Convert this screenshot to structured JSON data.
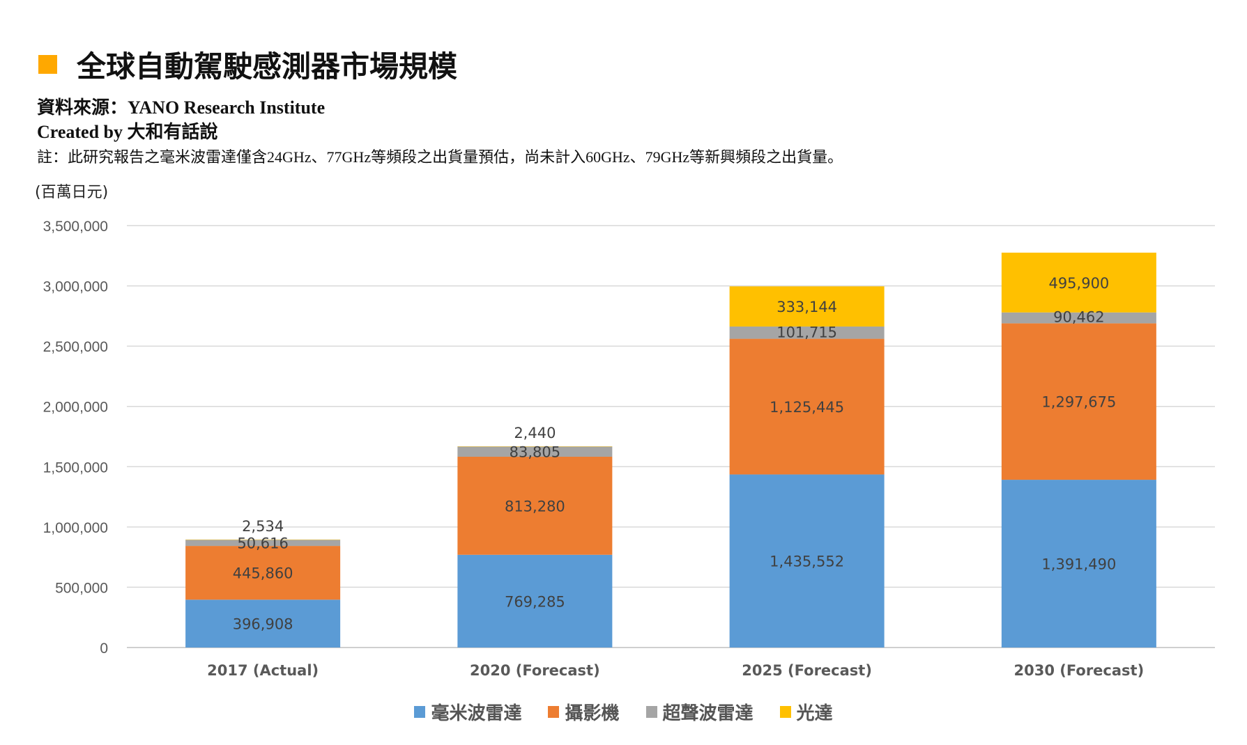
{
  "header": {
    "title": "全球自動駕駛感測器市場規模",
    "source": "資料來源：YANO Research Institute",
    "created_by": "Created by 大和有話說",
    "note": "註：此研究報告之毫米波雷達僅含24GHz、77GHz等頻段之出貨量預估，尚未計入60GHz、79GHz等新興頻段之出貨量。",
    "unit": "(百萬日元)",
    "accent": "#FFA800"
  },
  "chart_data": {
    "type": "bar",
    "stacked": true,
    "title": "全球自動駕駛感測器市場規模",
    "ylabel": "(百萬日元)",
    "xlabel": "",
    "ylim": [
      0,
      3500000
    ],
    "yticks": [
      "0",
      "500,000",
      "1,000,000",
      "1,500,000",
      "2,000,000",
      "2,500,000",
      "3,000,000",
      "3,500,000"
    ],
    "ytick_values": [
      0,
      500000,
      1000000,
      1500000,
      2000000,
      2500000,
      3000000,
      3500000
    ],
    "grid": true,
    "legend_position": "bottom",
    "categories": [
      "2017 (Actual)",
      "2020 (Forecast)",
      "2025 (Forecast)",
      "2030 (Forecast)"
    ],
    "series": [
      {
        "name": "毫米波雷達",
        "color": "#5B9BD5",
        "values": [
          396908,
          769285,
          1435552,
          1391490
        ],
        "labels": [
          "396,908",
          "769,285",
          "1,435,552",
          "1,391,490"
        ]
      },
      {
        "name": "攝影機",
        "color": "#ED7D31",
        "values": [
          445860,
          813280,
          1125445,
          1297675
        ],
        "labels": [
          "445,860",
          "813,280",
          "1,125,445",
          "1,297,675"
        ]
      },
      {
        "name": "超聲波雷達",
        "color": "#A5A5A5",
        "values": [
          50616,
          83805,
          101715,
          90462
        ],
        "labels": [
          "50,616",
          "83,805",
          "101,715",
          "90,462"
        ]
      },
      {
        "name": "光達",
        "color": "#FFC000",
        "values": [
          2534,
          2440,
          333144,
          495900
        ],
        "labels": [
          "2,534",
          "2,440",
          "333,144",
          "495,900"
        ]
      }
    ]
  }
}
